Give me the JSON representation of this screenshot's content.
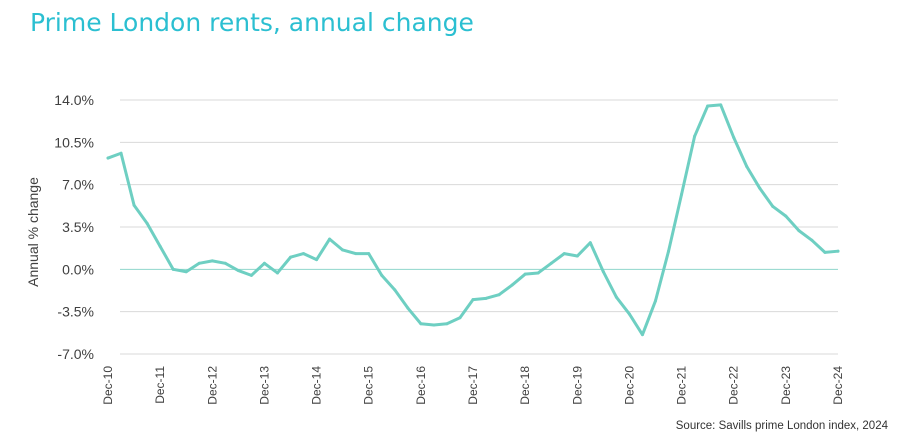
{
  "chart_data": {
    "type": "line",
    "title": "Prime London rents, annual change",
    "ylabel": "Annual % change",
    "xlabel": "",
    "source": "Source: Savills prime London index, 2024",
    "ylim": [
      -7.0,
      14.0
    ],
    "yticks": [
      "14.0%",
      "10.5%",
      "7.0%",
      "3.5%",
      "0.0%",
      "-3.5%",
      "-7.0%"
    ],
    "ytick_values": [
      14.0,
      10.5,
      7.0,
      3.5,
      0.0,
      -3.5,
      -7.0
    ],
    "xticks": [
      "Dec-10",
      "Dec-11",
      "Dec-12",
      "Dec-13",
      "Dec-14",
      "Dec-15",
      "Dec-16",
      "Dec-17",
      "Dec-18",
      "Dec-19",
      "Dec-20",
      "Dec-21",
      "Dec-22",
      "Dec-23",
      "Dec-24"
    ],
    "grid": true,
    "colors": {
      "line": "#6ecfc2",
      "grid": "#d9d9d9",
      "title": "#2bbfd1"
    },
    "series": [
      {
        "x": [
          "Dec-10",
          "Mar-11",
          "Jun-11",
          "Sep-11",
          "Dec-11",
          "Mar-12",
          "Jun-12",
          "Sep-12",
          "Dec-12",
          "Mar-13",
          "Jun-13",
          "Sep-13",
          "Dec-13",
          "Mar-14",
          "Jun-14",
          "Sep-14",
          "Dec-14",
          "Mar-15",
          "Jun-15",
          "Sep-15",
          "Dec-15",
          "Mar-16",
          "Jun-16",
          "Sep-16",
          "Dec-16",
          "Mar-17",
          "Jun-17",
          "Sep-17",
          "Dec-17",
          "Mar-18",
          "Jun-18",
          "Sep-18",
          "Dec-18",
          "Mar-19",
          "Jun-19",
          "Sep-19",
          "Dec-19",
          "Mar-20",
          "Jun-20",
          "Sep-20",
          "Dec-20",
          "Mar-21",
          "Jun-21",
          "Sep-21",
          "Dec-21",
          "Mar-22",
          "Jun-22",
          "Sep-22",
          "Dec-22",
          "Mar-23",
          "Jun-23",
          "Sep-23",
          "Dec-23",
          "Mar-24",
          "Jun-24",
          "Sep-24",
          "Dec-24"
        ],
        "values": [
          9.2,
          9.6,
          5.3,
          3.8,
          1.9,
          0.0,
          -0.2,
          0.5,
          0.7,
          0.5,
          -0.1,
          -0.5,
          0.5,
          -0.3,
          1.0,
          1.3,
          0.8,
          2.5,
          1.6,
          1.3,
          1.3,
          -0.5,
          -1.7,
          -3.2,
          -4.5,
          -4.6,
          -4.5,
          -4.0,
          -2.5,
          -2.4,
          -2.1,
          -1.3,
          -0.4,
          -0.3,
          0.5,
          1.3,
          1.1,
          2.2,
          -0.2,
          -2.3,
          -3.7,
          -5.4,
          -2.6,
          1.5,
          6.2,
          11.0,
          13.5,
          13.6,
          10.9,
          8.5,
          6.7,
          5.2,
          4.4,
          3.2,
          2.4,
          1.4,
          1.5
        ]
      }
    ]
  }
}
